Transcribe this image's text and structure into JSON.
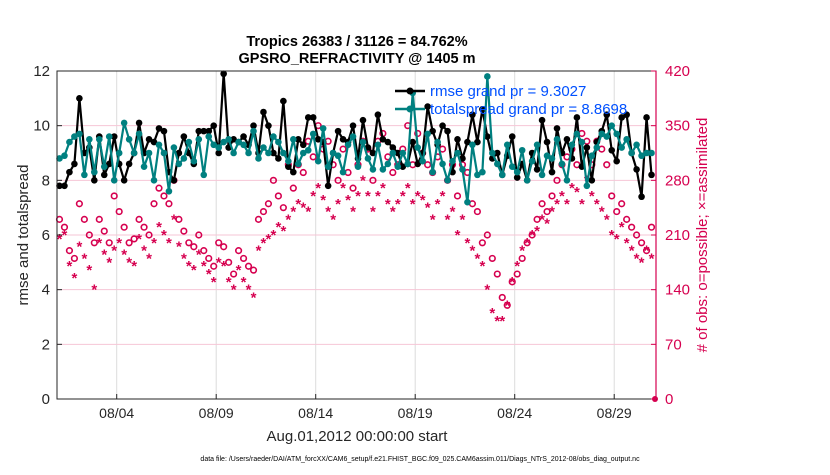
{
  "chart_data": {
    "type": "line",
    "title": [
      "Tropics 26383 / 31126 = 84.762%",
      "GPSRO_REFRACTIVITY @ 1405 m"
    ],
    "xlabel": "Aug.01,2012 00:00:00 start",
    "ylabel": "rmse and totalspread",
    "ylabel_right": "# of obs: o=possible; ×=assimilated",
    "footer": "data file: /Users/raeder/DAI/ATM_forcXX/CAM6_setup/f.e21.FHIST_BGC.f09_025.CAM6assim.011/Diags_NTrS_2012-08/obs_diag_output.nc",
    "xlim_days": [
      0,
      30.1
    ],
    "xticks": [
      {
        "day": 3,
        "label": "08/04"
      },
      {
        "day": 8,
        "label": "08/09"
      },
      {
        "day": 13,
        "label": "08/14"
      },
      {
        "day": 18,
        "label": "08/19"
      },
      {
        "day": 23,
        "label": "08/24"
      },
      {
        "day": 28,
        "label": "08/29"
      }
    ],
    "ylim": [
      0,
      12
    ],
    "yticks": [
      "0",
      "2",
      "4",
      "6",
      "8",
      "10",
      "12"
    ],
    "ylim_right": [
      0,
      420
    ],
    "yticks_right": [
      "0",
      "70",
      "140",
      "210",
      "280",
      "350",
      "420"
    ],
    "time_step_days": 0.25,
    "legend": {
      "placement": "top-right",
      "entries": [
        "rmse grand pr = 9.3027",
        "totalspread grand pr = 8.8698"
      ]
    },
    "colors": {
      "rmse": "#000000",
      "totalspread": "#008080",
      "obs": "#d6004f",
      "legend_text": "#0050ff"
    },
    "series": [
      {
        "name": "rmse",
        "values": [
          7.8,
          7.8,
          8.3,
          8.6,
          11.0,
          9.0,
          9.2,
          8.0,
          9.6,
          8.2,
          8.6,
          9.6,
          8.6,
          8.0,
          8.6,
          9.0,
          10.1,
          9.0,
          9.5,
          9.4,
          9.9,
          9.8,
          8.3,
          8.0,
          9.0,
          9.6,
          9.0,
          8.6,
          9.8,
          9.8,
          9.8,
          10.0,
          9.0,
          11.9,
          9.2,
          9.5,
          9.4,
          9.6,
          9.3,
          10.0,
          9.0,
          10.5,
          10.0,
          9.0,
          8.8,
          10.9,
          8.5,
          8.3,
          9.5,
          9.3,
          10.3,
          10.3,
          9.5,
          9.4,
          7.8,
          9.0,
          9.8,
          9.5,
          9.4,
          10.0,
          8.8,
          10.2,
          9.2,
          9.0,
          10.4,
          9.5,
          9.4,
          9.2,
          9.0,
          8.5,
          8.6,
          9.4,
          8.6,
          9.0,
          10.7,
          9.8,
          9.3,
          10.0,
          9.8,
          8.3,
          9.5,
          8.8,
          9.4,
          10.4,
          9.4,
          10.6,
          9.6,
          8.8,
          9.0,
          8.2,
          8.9,
          9.6,
          8.1,
          8.6,
          8.0,
          9.0,
          8.4,
          10.2,
          9.4,
          8.3,
          9.9,
          9.0,
          9.5,
          8.8,
          10.3,
          8.5,
          9.2,
          8.0,
          9.4,
          9.8,
          10.4,
          9.1,
          8.7,
          10.3,
          10.4,
          9.0,
          8.4,
          7.4,
          10.3,
          8.2
        ]
      },
      {
        "name": "totalspread",
        "values": [
          8.8,
          8.9,
          9.4,
          9.6,
          9.7,
          8.2,
          9.5,
          8.3,
          9.5,
          8.5,
          9.6,
          8.0,
          9.0,
          10.1,
          9.5,
          9.0,
          9.7,
          8.5,
          9.0,
          8.0,
          9.3,
          9.0,
          7.6,
          9.2,
          8.6,
          8.8,
          9.4,
          8.7,
          9.5,
          8.2,
          9.6,
          9.3,
          9.2,
          9.4,
          9.5,
          9.0,
          9.4,
          9.3,
          9.0,
          9.8,
          8.8,
          9.2,
          9.0,
          9.6,
          9.4,
          9.0,
          8.7,
          9.5,
          8.6,
          9.0,
          9.1,
          9.7,
          8.7,
          9.9,
          8.5,
          9.0,
          8.9,
          8.3,
          9.3,
          9.6,
          8.5,
          9.4,
          8.8,
          8.4,
          9.3,
          8.4,
          8.6,
          9.0,
          8.5,
          9.0,
          8.6,
          11.2,
          9.2,
          8.7,
          9.7,
          8.3,
          9.4,
          8.6,
          8.0,
          8.7,
          9.0,
          8.4,
          7.2,
          9.3,
          8.2,
          8.3,
          11.8,
          9.0,
          8.6,
          8.2,
          9.3,
          8.5,
          8.3,
          9.1,
          8.0,
          8.7,
          9.3,
          8.2,
          8.9,
          8.8,
          9.5,
          8.6,
          8.0,
          9.3,
          9.7,
          9.4,
          7.8,
          8.9,
          9.2,
          9.7,
          9.6,
          10.0,
          9.7,
          9.2,
          9.5,
          9.0,
          9.3,
          8.9,
          9.0,
          9.0
        ]
      },
      {
        "name": "obs_possible",
        "axis": "right",
        "values": [
          230,
          220,
          190,
          180,
          250,
          230,
          210,
          200,
          230,
          215,
          200,
          260,
          240,
          220,
          200,
          205,
          230,
          220,
          210,
          250,
          270,
          260,
          250,
          280,
          230,
          215,
          200,
          195,
          210,
          190,
          180,
          170,
          200,
          195,
          175,
          160,
          190,
          180,
          170,
          165,
          230,
          240,
          250,
          280,
          260,
          245,
          300,
          270,
          300,
          290,
          330,
          310,
          350,
          320,
          330,
          300,
          280,
          320,
          290,
          270,
          300,
          330,
          320,
          280,
          330,
          340,
          310,
          290,
          300,
          320,
          350,
          300,
          340,
          315,
          300,
          290,
          310,
          320,
          280,
          300,
          260,
          300,
          290,
          250,
          240,
          200,
          210,
          180,
          160,
          130,
          120,
          150,
          160,
          180,
          200,
          210,
          230,
          250,
          240,
          260,
          280,
          300,
          310,
          320,
          300,
          340,
          330,
          300,
          330,
          320,
          300,
          260,
          240,
          250,
          230,
          220,
          210,
          200,
          190,
          220
        ]
      },
      {
        "name": "obs_assimilated",
        "axis": "right",
        "values": [
          205,
          210,
          170,
          155,
          195,
          180,
          165,
          140,
          200,
          185,
          175,
          190,
          200,
          185,
          175,
          170,
          205,
          190,
          180,
          200,
          220,
          210,
          200,
          230,
          195,
          180,
          170,
          165,
          185,
          170,
          160,
          150,
          175,
          170,
          150,
          140,
          165,
          150,
          140,
          130,
          190,
          200,
          205,
          210,
          220,
          215,
          230,
          240,
          250,
          245,
          240,
          260,
          270,
          255,
          240,
          230,
          250,
          270,
          255,
          240,
          260,
          280,
          260,
          240,
          260,
          270,
          250,
          240,
          250,
          260,
          270,
          250,
          260,
          255,
          245,
          230,
          250,
          260,
          230,
          240,
          210,
          230,
          200,
          190,
          180,
          170,
          140,
          110,
          100,
          100,
          120,
          150,
          170,
          190,
          200,
          210,
          215,
          230,
          225,
          240,
          250,
          260,
          250,
          270,
          265,
          250,
          280,
          260,
          250,
          240,
          230,
          210,
          205,
          220,
          200,
          190,
          180,
          175,
          190,
          180
        ]
      }
    ],
    "final_obs_marker": 0
  }
}
